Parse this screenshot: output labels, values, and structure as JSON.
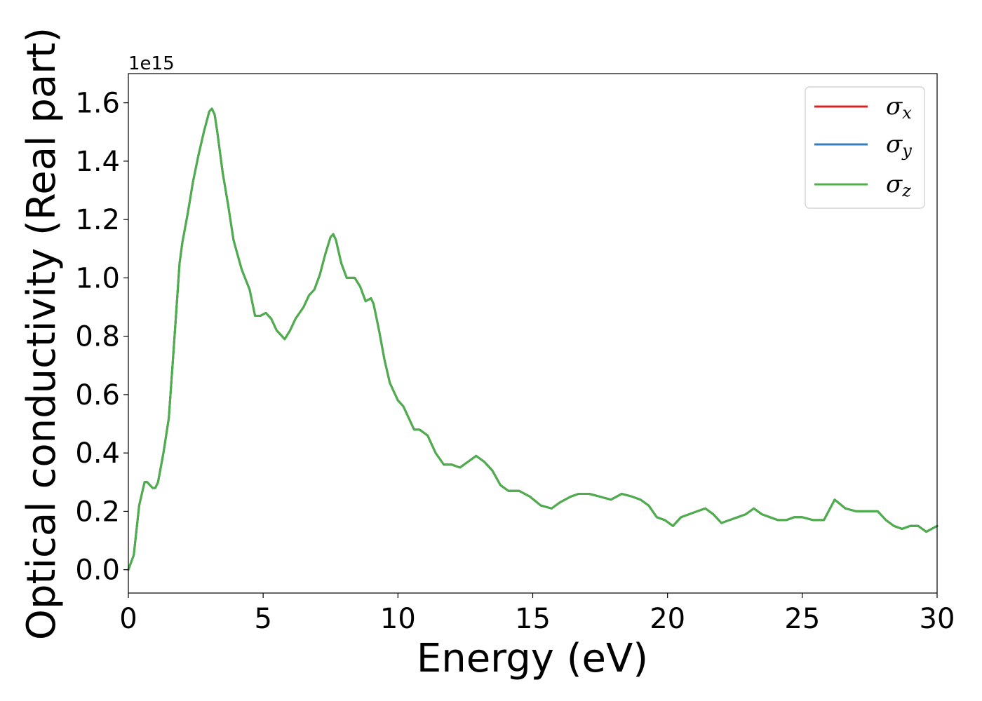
{
  "chart_data": {
    "type": "line",
    "title": "",
    "xlabel": "Energy (eV)",
    "ylabel": "Optical conductivity (Real part)",
    "y_offset_label": "1e15",
    "xlim": [
      0,
      30
    ],
    "ylim": [
      -0.08,
      1.7
    ],
    "x_ticks": [
      0,
      5,
      10,
      15,
      20,
      25,
      30
    ],
    "x_tick_labels": [
      "0",
      "5",
      "10",
      "15",
      "20",
      "25",
      "30"
    ],
    "y_ticks": [
      0.0,
      0.2,
      0.4,
      0.6,
      0.8,
      1.0,
      1.2,
      1.4,
      1.6
    ],
    "y_tick_labels": [
      "0.0",
      "0.2",
      "0.4",
      "0.6",
      "0.8",
      "1.0",
      "1.2",
      "1.4",
      "1.6"
    ],
    "grid": false,
    "legend_position": "top-right",
    "x": [
      0,
      0.2,
      0.4,
      0.6,
      0.7,
      0.9,
      1.0,
      1.1,
      1.3,
      1.5,
      1.7,
      1.9,
      2.0,
      2.2,
      2.4,
      2.6,
      2.8,
      3.0,
      3.1,
      3.2,
      3.3,
      3.5,
      3.7,
      3.9,
      4.2,
      4.5,
      4.7,
      4.9,
      5.1,
      5.3,
      5.5,
      5.8,
      6.0,
      6.2,
      6.5,
      6.7,
      6.9,
      7.1,
      7.3,
      7.5,
      7.6,
      7.7,
      7.9,
      8.1,
      8.3,
      8.4,
      8.6,
      8.8,
      9.0,
      9.1,
      9.3,
      9.5,
      9.7,
      10.0,
      10.2,
      10.4,
      10.6,
      10.8,
      11.1,
      11.4,
      11.7,
      12.0,
      12.3,
      12.6,
      12.9,
      13.2,
      13.5,
      13.8,
      14.1,
      14.5,
      14.9,
      15.3,
      15.7,
      16.0,
      16.4,
      16.7,
      17.1,
      17.5,
      17.9,
      18.3,
      18.7,
      19.0,
      19.3,
      19.6,
      19.9,
      20.2,
      20.5,
      20.8,
      21.1,
      21.4,
      21.7,
      22.0,
      22.3,
      22.6,
      22.9,
      23.2,
      23.5,
      23.8,
      24.1,
      24.4,
      24.7,
      25.0,
      25.4,
      25.8,
      26.2,
      26.6,
      27.0,
      27.4,
      27.8,
      28.1,
      28.4,
      28.7,
      29.0,
      29.3,
      29.6,
      30.0
    ],
    "series": [
      {
        "name": "σx",
        "color": "#d62728",
        "values": [
          0.0,
          0.05,
          0.22,
          0.3,
          0.3,
          0.28,
          0.28,
          0.3,
          0.4,
          0.52,
          0.78,
          1.05,
          1.12,
          1.22,
          1.33,
          1.42,
          1.5,
          1.57,
          1.58,
          1.56,
          1.5,
          1.36,
          1.25,
          1.13,
          1.03,
          0.96,
          0.87,
          0.87,
          0.88,
          0.86,
          0.82,
          0.79,
          0.82,
          0.86,
          0.9,
          0.94,
          0.96,
          1.01,
          1.08,
          1.14,
          1.15,
          1.13,
          1.05,
          1.0,
          1.0,
          1.0,
          0.97,
          0.92,
          0.93,
          0.91,
          0.82,
          0.72,
          0.64,
          0.58,
          0.56,
          0.52,
          0.48,
          0.48,
          0.46,
          0.4,
          0.36,
          0.36,
          0.35,
          0.37,
          0.39,
          0.37,
          0.34,
          0.29,
          0.27,
          0.27,
          0.25,
          0.22,
          0.21,
          0.23,
          0.25,
          0.26,
          0.26,
          0.25,
          0.24,
          0.26,
          0.25,
          0.24,
          0.22,
          0.18,
          0.17,
          0.15,
          0.18,
          0.19,
          0.2,
          0.21,
          0.19,
          0.16,
          0.17,
          0.18,
          0.19,
          0.21,
          0.19,
          0.18,
          0.17,
          0.17,
          0.18,
          0.18,
          0.17,
          0.17,
          0.24,
          0.21,
          0.2,
          0.2,
          0.2,
          0.17,
          0.15,
          0.14,
          0.15,
          0.15,
          0.13,
          0.15
        ]
      },
      {
        "name": "σy",
        "color": "#377eb8",
        "values": [
          0.0,
          0.05,
          0.22,
          0.3,
          0.3,
          0.28,
          0.28,
          0.3,
          0.4,
          0.52,
          0.78,
          1.05,
          1.12,
          1.22,
          1.33,
          1.42,
          1.5,
          1.57,
          1.58,
          1.56,
          1.5,
          1.36,
          1.25,
          1.13,
          1.03,
          0.96,
          0.87,
          0.87,
          0.88,
          0.86,
          0.82,
          0.79,
          0.82,
          0.86,
          0.9,
          0.94,
          0.96,
          1.01,
          1.08,
          1.14,
          1.15,
          1.13,
          1.05,
          1.0,
          1.0,
          1.0,
          0.97,
          0.92,
          0.93,
          0.91,
          0.82,
          0.72,
          0.64,
          0.58,
          0.56,
          0.52,
          0.48,
          0.48,
          0.46,
          0.4,
          0.36,
          0.36,
          0.35,
          0.37,
          0.39,
          0.37,
          0.34,
          0.29,
          0.27,
          0.27,
          0.25,
          0.22,
          0.21,
          0.23,
          0.25,
          0.26,
          0.26,
          0.25,
          0.24,
          0.26,
          0.25,
          0.24,
          0.22,
          0.18,
          0.17,
          0.15,
          0.18,
          0.19,
          0.2,
          0.21,
          0.19,
          0.16,
          0.17,
          0.18,
          0.19,
          0.21,
          0.19,
          0.18,
          0.17,
          0.17,
          0.18,
          0.18,
          0.17,
          0.17,
          0.24,
          0.21,
          0.2,
          0.2,
          0.2,
          0.17,
          0.15,
          0.14,
          0.15,
          0.15,
          0.13,
          0.15
        ]
      },
      {
        "name": "σz",
        "color": "#4daf4a",
        "values": [
          0.0,
          0.05,
          0.22,
          0.3,
          0.3,
          0.28,
          0.28,
          0.3,
          0.4,
          0.52,
          0.78,
          1.05,
          1.12,
          1.22,
          1.33,
          1.42,
          1.5,
          1.57,
          1.58,
          1.56,
          1.5,
          1.36,
          1.25,
          1.13,
          1.03,
          0.96,
          0.87,
          0.87,
          0.88,
          0.86,
          0.82,
          0.79,
          0.82,
          0.86,
          0.9,
          0.94,
          0.96,
          1.01,
          1.08,
          1.14,
          1.15,
          1.13,
          1.05,
          1.0,
          1.0,
          1.0,
          0.97,
          0.92,
          0.93,
          0.91,
          0.82,
          0.72,
          0.64,
          0.58,
          0.56,
          0.52,
          0.48,
          0.48,
          0.46,
          0.4,
          0.36,
          0.36,
          0.35,
          0.37,
          0.39,
          0.37,
          0.34,
          0.29,
          0.27,
          0.27,
          0.25,
          0.22,
          0.21,
          0.23,
          0.25,
          0.26,
          0.26,
          0.25,
          0.24,
          0.26,
          0.25,
          0.24,
          0.22,
          0.18,
          0.17,
          0.15,
          0.18,
          0.19,
          0.2,
          0.21,
          0.19,
          0.16,
          0.17,
          0.18,
          0.19,
          0.21,
          0.19,
          0.18,
          0.17,
          0.17,
          0.18,
          0.18,
          0.17,
          0.17,
          0.24,
          0.21,
          0.2,
          0.2,
          0.2,
          0.17,
          0.15,
          0.14,
          0.15,
          0.15,
          0.13,
          0.15
        ]
      }
    ],
    "legend": [
      {
        "symbol": "σ",
        "sub": "x",
        "color": "#d62728"
      },
      {
        "symbol": "σ",
        "sub": "y",
        "color": "#377eb8"
      },
      {
        "symbol": "σ",
        "sub": "z",
        "color": "#4daf4a"
      }
    ]
  }
}
